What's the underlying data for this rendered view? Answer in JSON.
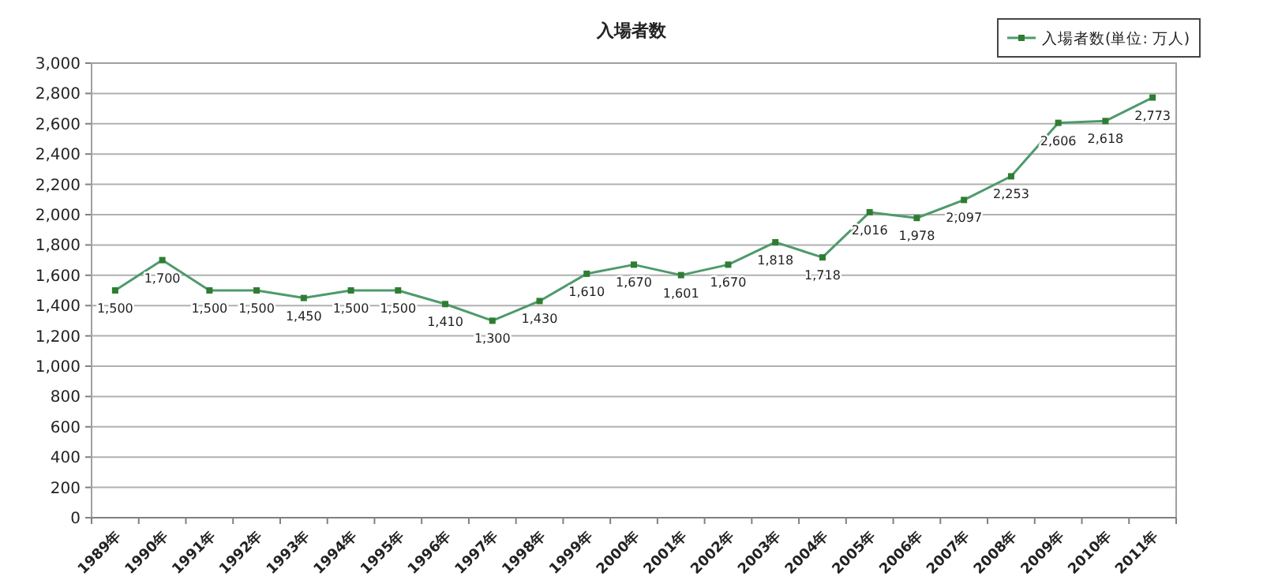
{
  "chart_data": {
    "type": "line",
    "title": "入場者数",
    "categories": [
      "1989年",
      "1990年",
      "1991年",
      "1992年",
      "1993年",
      "1994年",
      "1995年",
      "1996年",
      "1997年",
      "1998年",
      "1999年",
      "2000年",
      "2001年",
      "2002年",
      "2003年",
      "2004年",
      "2005年",
      "2006年",
      "2007年",
      "2008年",
      "2009年",
      "2010年",
      "2011年"
    ],
    "series": [
      {
        "name": "入場者数(単位: 万人)",
        "color": "#4e9a6c",
        "values": [
          1500,
          1700,
          1500,
          1500,
          1450,
          1500,
          1500,
          1410,
          1300,
          1430,
          1610,
          1670,
          1601,
          1670,
          1818,
          1718,
          2016,
          1978,
          2097,
          2253,
          2606,
          2618,
          2773
        ],
        "value_labels": [
          "1,500",
          "1,700",
          "1,500",
          "1,500",
          "1,450",
          "1,500",
          "1,500",
          "1,410",
          "1,300",
          "1,430",
          "1,610",
          "1,670",
          "1,601",
          "1,670",
          "1,818",
          "1,718",
          "2,016",
          "1,978",
          "2,097",
          "2,253",
          "2,606",
          "2,618",
          "2,773"
        ]
      }
    ],
    "ylim": [
      0,
      3000
    ],
    "yticks": [
      0,
      200,
      400,
      600,
      800,
      {
        "value": 1000,
        "label": "1,000"
      },
      {
        "value": 1200,
        "label": "1,200"
      },
      {
        "value": 1400,
        "label": "1,400"
      },
      {
        "value": 1600,
        "label": "1,600"
      },
      {
        "value": 1800,
        "label": "1,800"
      },
      {
        "value": 2000,
        "label": "2,000"
      },
      {
        "value": 2200,
        "label": "2,200"
      },
      {
        "value": 2400,
        "label": "2,400"
      },
      {
        "value": 2600,
        "label": "2,600"
      },
      {
        "value": 2800,
        "label": "2,800"
      },
      {
        "value": 3000,
        "label": "3,000"
      }
    ],
    "grid": "y",
    "legend": "top right",
    "marker": "square"
  }
}
